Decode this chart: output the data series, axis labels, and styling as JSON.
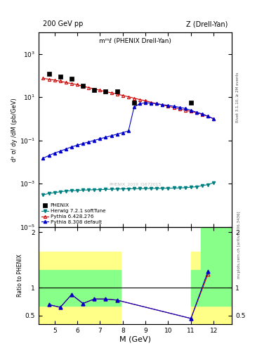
{
  "title_left": "200 GeV pp",
  "title_right": "Z (Drell-Yan)",
  "main_title": "mᵐℓ (PHENIX Drell-Yan)",
  "xlabel": "M (GeV)",
  "ylabel_main": "d² σ/ dy /dM (pb/GeV)",
  "ylabel_ratio": "Ratio to PHENIX",
  "right_label_main": "Rivet 3.1.10, ≥ 2M events",
  "right_label_ratio": "mcplots.cern.ch [arXiv:1306.3436]",
  "watermark": "PHENIX_2019_I1672015",
  "phenix_x": [
    4.75,
    5.25,
    5.75,
    6.25,
    6.75,
    7.25,
    7.75,
    8.5,
    11.0
  ],
  "phenix_y": [
    120,
    90,
    70,
    35,
    22,
    19,
    18,
    5.5,
    5.5
  ],
  "pythia6_x": [
    4.5,
    4.75,
    5.0,
    5.25,
    5.5,
    5.75,
    6.0,
    6.25,
    6.5,
    6.75,
    7.0,
    7.25,
    7.5,
    7.75,
    8.0,
    8.25,
    8.5,
    8.75,
    9.0,
    9.25,
    9.5,
    9.75,
    10.0,
    10.25,
    10.5,
    10.75,
    11.0,
    11.25,
    11.5,
    11.75,
    12.0
  ],
  "pythia6_y": [
    75,
    68,
    62,
    55,
    48,
    43,
    38,
    32,
    28,
    24,
    21,
    18,
    16,
    14,
    12,
    10.5,
    9.0,
    7.8,
    6.8,
    5.8,
    5.0,
    4.4,
    3.8,
    3.3,
    2.9,
    2.5,
    2.2,
    1.9,
    1.6,
    1.3,
    1.0
  ],
  "herwig_x": [
    4.5,
    4.75,
    5.0,
    5.25,
    5.5,
    5.75,
    6.0,
    6.25,
    6.5,
    6.75,
    7.0,
    7.25,
    7.5,
    7.75,
    8.0,
    8.25,
    8.5,
    8.75,
    9.0,
    9.25,
    9.5,
    9.75,
    10.0,
    10.25,
    10.5,
    10.75,
    11.0,
    11.25,
    11.5,
    11.75,
    12.0
  ],
  "herwig_y": [
    0.0003,
    0.00035,
    0.00038,
    0.00042,
    0.00045,
    0.00047,
    0.00048,
    0.0005,
    0.00051,
    0.00052,
    0.00053,
    0.00054,
    0.00055,
    0.00056,
    0.00057,
    0.000575,
    0.00058,
    0.000585,
    0.00059,
    0.000595,
    0.0006,
    0.000605,
    0.00061,
    0.00062,
    0.00063,
    0.00065,
    0.00068,
    0.00072,
    0.0008,
    0.0009,
    0.0011
  ],
  "pythia8_x": [
    4.5,
    4.75,
    5.0,
    5.25,
    5.5,
    5.75,
    6.0,
    6.25,
    6.5,
    6.75,
    7.0,
    7.25,
    7.5,
    7.75,
    8.0,
    8.25,
    8.5,
    8.75,
    9.0,
    9.25,
    9.5,
    9.75,
    10.0,
    10.25,
    10.5,
    10.75,
    11.0,
    11.25,
    11.5,
    11.75,
    12.0
  ],
  "pythia8_y": [
    0.015,
    0.02,
    0.026,
    0.032,
    0.04,
    0.05,
    0.06,
    0.072,
    0.085,
    0.1,
    0.12,
    0.14,
    0.165,
    0.195,
    0.23,
    0.27,
    3.5,
    5.0,
    5.5,
    5.3,
    5.0,
    4.5,
    4.2,
    3.8,
    3.4,
    3.0,
    2.5,
    2.0,
    1.7,
    1.3,
    1.0
  ],
  "ratio_pythia6_x": [
    4.75,
    5.25,
    5.75,
    6.25,
    6.75,
    7.25,
    7.75,
    11.0,
    11.75
  ],
  "ratio_pythia6_y": [
    0.7,
    0.65,
    0.88,
    0.72,
    0.8,
    0.8,
    0.78,
    0.45,
    1.25
  ],
  "ratio_pythia8_x": [
    4.75,
    5.25,
    5.75,
    6.25,
    6.75,
    7.25,
    7.75,
    11.0,
    11.75
  ],
  "ratio_pythia8_y": [
    0.7,
    0.65,
    0.88,
    0.72,
    0.8,
    0.8,
    0.78,
    0.45,
    1.3
  ],
  "color_phenix": "#000000",
  "color_pythia6": "#cc0000",
  "color_herwig": "#008080",
  "color_pythia8": "#0000cc",
  "color_yellow": "#ffff88",
  "color_green": "#88ff88",
  "ylim_main": [
    1e-05,
    10000.0
  ],
  "xlim": [
    4.3,
    12.8
  ],
  "ylim_ratio": [
    0.35,
    2.1
  ],
  "xticks": [
    5,
    6,
    7,
    8,
    9,
    10,
    11,
    12
  ]
}
